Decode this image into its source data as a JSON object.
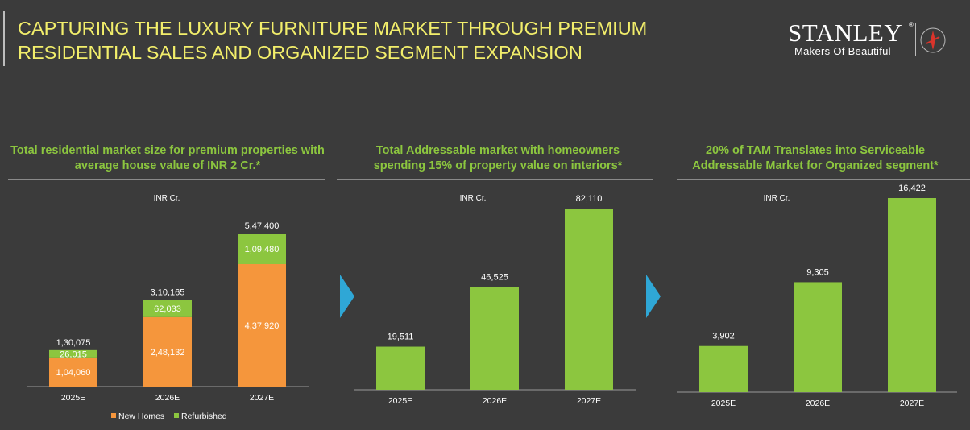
{
  "header": {
    "title_line1": "CAPTURING THE LUXURY FURNITURE MARKET THROUGH PREMIUM",
    "title_line2": "RESIDENTIAL SALES AND ORGANIZED SEGMENT EXPANSION",
    "logo_name": "STANLEY",
    "logo_registered": "®",
    "logo_tagline": "Makers Of Beautiful"
  },
  "colors": {
    "title": "#f2ee6b",
    "green": "#8cc63f",
    "orange": "#f5963c",
    "arrow": "#2fa7d6",
    "background": "#3b3b3b"
  },
  "panels": [
    {
      "title_line1": "Total residential market size for premium properties with",
      "title_line2": "average house value of INR 2 Cr.*"
    },
    {
      "title_line1": "Total Addressable market with homeowners",
      "title_line2": "spending 15% of property value on interiors*"
    },
    {
      "title_line1": "20% of TAM Translates into Serviceable",
      "title_line2": "Addressable Market for Organized segment*"
    }
  ],
  "chart_data": [
    {
      "type": "bar",
      "stacked": true,
      "unit_label": "INR Cr.",
      "categories": [
        "2025E",
        "2026E",
        "2027E"
      ],
      "series": [
        {
          "name": "New Homes",
          "color": "#f5963c",
          "values": [
            104060,
            248132,
            437920
          ],
          "labels": [
            "1,04,060",
            "2,48,132",
            "4,37,920"
          ]
        },
        {
          "name": "Refurbished",
          "color": "#8cc63f",
          "values": [
            26015,
            62033,
            109480
          ],
          "labels": [
            "26,015",
            "62,033",
            "1,09,480"
          ]
        }
      ],
      "totals": [
        130075,
        310165,
        547400
      ],
      "total_labels": [
        "1,30,075",
        "3,10,165",
        "5,47,400"
      ],
      "legend": "bottom"
    },
    {
      "type": "bar",
      "unit_label": "INR Cr.",
      "categories": [
        "2025E",
        "2026E",
        "2027E"
      ],
      "values": [
        19511,
        46525,
        82110
      ],
      "labels": [
        "19,511",
        "46,525",
        "82,110"
      ],
      "color": "#8cc63f"
    },
    {
      "type": "bar",
      "unit_label": "INR Cr.",
      "categories": [
        "2025E",
        "2026E",
        "2027E"
      ],
      "values": [
        3902,
        9305,
        16422
      ],
      "labels": [
        "3,902",
        "9,305",
        "16,422"
      ],
      "color": "#8cc63f"
    }
  ]
}
